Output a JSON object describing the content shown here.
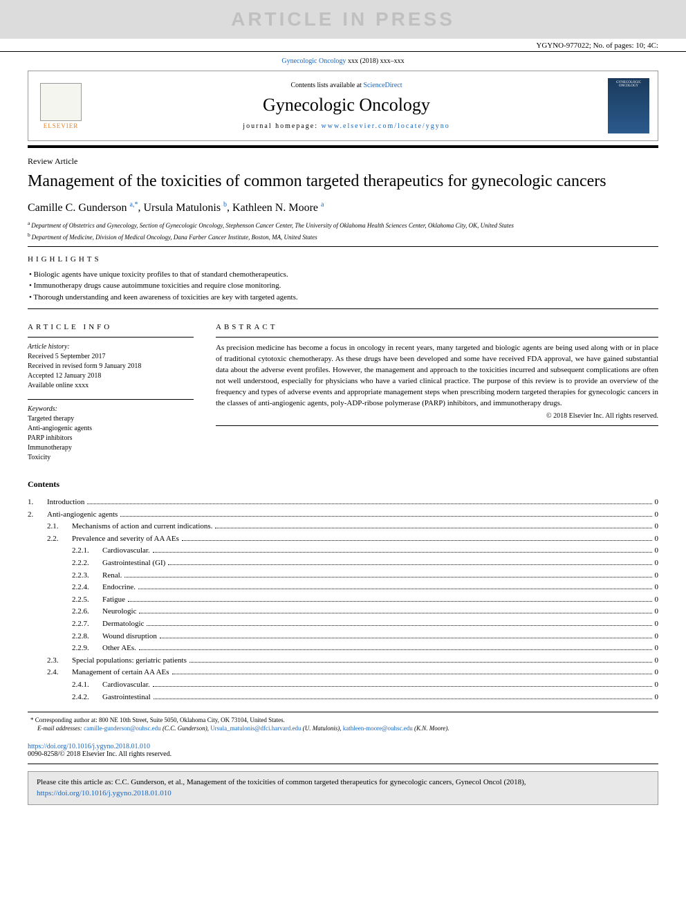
{
  "banner": "ARTICLE IN PRESS",
  "doc_id": "YGYNO-977022; No. of pages: 10; 4C:",
  "journal_ref_prefix": "Gynecologic Oncology",
  "journal_ref_suffix": " xxx (2018) xxx–xxx",
  "contents_prefix": "Contents lists available at ",
  "contents_link": "ScienceDirect",
  "journal_name": "Gynecologic Oncology",
  "homepage_prefix": "journal homepage: ",
  "homepage_url": "www.elsevier.com/locate/ygyno",
  "elsevier_label": "ELSEVIER",
  "cover_label": "GYNECOLOGIC ONCOLOGY",
  "article_type": "Review Article",
  "title": "Management of the toxicities of common targeted therapeutics for gynecologic cancers",
  "authors": [
    {
      "name": "Camille C. Gunderson",
      "marks": "a,*"
    },
    {
      "name": "Ursula Matulonis",
      "marks": "b"
    },
    {
      "name": "Kathleen N. Moore",
      "marks": "a"
    }
  ],
  "affiliations": [
    {
      "mark": "a",
      "text": "Department of Obstetrics and Gynecology, Section of Gynecologic Oncology, Stephenson Cancer Center, The University of Oklahoma Health Sciences Center, Oklahoma City, OK, United States"
    },
    {
      "mark": "b",
      "text": "Department of Medicine, Division of Medical Oncology, Dana Farber Cancer Institute, Boston, MA, United States"
    }
  ],
  "highlights_label": "HIGHLIGHTS",
  "highlights": [
    "Biologic agents have unique toxicity profiles to that of standard chemotherapeutics.",
    "Immunotherapy drugs cause autoimmune toxicities and require close monitoring.",
    "Thorough understanding and keen awareness of toxicities are key with targeted agents."
  ],
  "article_info_label": "ARTICLE INFO",
  "history_label": "Article history:",
  "history": [
    "Received 5 September 2017",
    "Received in revised form 9 January 2018",
    "Accepted 12 January 2018",
    "Available online xxxx"
  ],
  "keywords_label": "Keywords:",
  "keywords": [
    "Targeted therapy",
    "Anti-angiogenic agents",
    "PARP inhibitors",
    "Immunotherapy",
    "Toxicity"
  ],
  "abstract_label": "ABSTRACT",
  "abstract": "As precision medicine has become a focus in oncology in recent years, many targeted and biologic agents are being used along with or in place of traditional cytotoxic chemotherapy. As these drugs have been developed and some have received FDA approval, we have gained substantial data about the adverse event profiles. However, the management and approach to the toxicities incurred and subsequent complications are often not well understood, especially for physicians who have a varied clinical practice. The purpose of this review is to provide an overview of the frequency and types of adverse events and appropriate management steps when prescribing modern targeted therapies for gynecologic cancers in the classes of anti-angiogenic agents, poly-ADP-ribose polymerase (PARP) inhibitors, and immunotherapy drugs.",
  "abstract_copyright": "© 2018 Elsevier Inc. All rights reserved.",
  "contents_heading": "Contents",
  "toc": [
    {
      "level": 1,
      "num": "1.",
      "title": "Introduction",
      "page": "0"
    },
    {
      "level": 1,
      "num": "2.",
      "title": "Anti-angiogenic agents",
      "page": "0"
    },
    {
      "level": 2,
      "num": "2.1.",
      "title": "Mechanisms of action and current indications.",
      "page": "0"
    },
    {
      "level": 2,
      "num": "2.2.",
      "title": "Prevalence and severity of AA AEs",
      "page": "0"
    },
    {
      "level": 3,
      "num": "2.2.1.",
      "title": "Cardiovascular.",
      "page": "0"
    },
    {
      "level": 3,
      "num": "2.2.2.",
      "title": "Gastrointestinal (GI)",
      "page": "0"
    },
    {
      "level": 3,
      "num": "2.2.3.",
      "title": "Renal.",
      "page": "0"
    },
    {
      "level": 3,
      "num": "2.2.4.",
      "title": "Endocrine.",
      "page": "0"
    },
    {
      "level": 3,
      "num": "2.2.5.",
      "title": "Fatigue",
      "page": "0"
    },
    {
      "level": 3,
      "num": "2.2.6.",
      "title": "Neurologic",
      "page": "0"
    },
    {
      "level": 3,
      "num": "2.2.7.",
      "title": "Dermatologic",
      "page": "0"
    },
    {
      "level": 3,
      "num": "2.2.8.",
      "title": "Wound disruption",
      "page": "0"
    },
    {
      "level": 3,
      "num": "2.2.9.",
      "title": "Other AEs.",
      "page": "0"
    },
    {
      "level": 2,
      "num": "2.3.",
      "title": "Special populations: geriatric patients",
      "page": "0"
    },
    {
      "level": 2,
      "num": "2.4.",
      "title": "Management of certain AA AEs",
      "page": "0"
    },
    {
      "level": 3,
      "num": "2.4.1.",
      "title": "Cardiovascular.",
      "page": "0"
    },
    {
      "level": 3,
      "num": "2.4.2.",
      "title": "Gastrointestinal",
      "page": "0"
    }
  ],
  "corresponding_prefix": "* Corresponding author at: ",
  "corresponding": "800 NE 10th Street, Suite 5050, Oklahoma City, OK 73104, United States.",
  "email_label": "E-mail addresses: ",
  "emails": [
    {
      "addr": "camille-gunderson@ouhsc.edu",
      "who": " (C.C. Gunderson), "
    },
    {
      "addr": "Ursula_matulonis@dfci.harvard.edu",
      "who": " (U. Matulonis), "
    },
    {
      "addr": "kathleen-moore@ouhsc.edu",
      "who": " (K.N. Moore)."
    }
  ],
  "doi": "https://doi.org/10.1016/j.ygyno.2018.01.010",
  "issn_line": "0090-8258/© 2018 Elsevier Inc. All rights reserved.",
  "cite_prefix": "Please cite this article as: C.C. Gunderson, et al., Management of the toxicities of common targeted therapeutics for gynecologic cancers, Gynecol Oncol (2018), ",
  "cite_link": "https://doi.org/10.1016/j.ygyno.2018.01.010",
  "colors": {
    "link": "#1565c0",
    "banner_bg": "#dcdcdc",
    "banner_fg": "#c0c0c0",
    "cite_bg": "#e8e8e8"
  }
}
